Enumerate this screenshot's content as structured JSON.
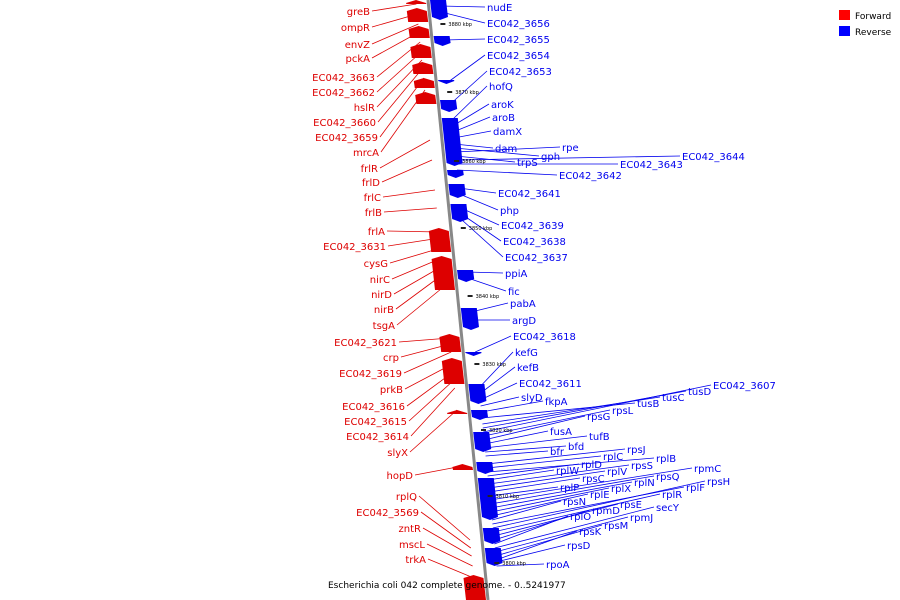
{
  "caption": "Escherichia coli 042 complete genome. - 0..5241977",
  "legend": [
    {
      "label": "Forward",
      "color": "#ff0000"
    },
    {
      "label": "Reverse",
      "color": "#0000ff"
    }
  ],
  "colors": {
    "forward": "#dd0000",
    "reverse": "#0000ee",
    "backbone": "#888888"
  },
  "ticks": [
    "3880 kbp",
    "3870 kbp",
    "3860 kbp",
    "3850 kbp",
    "3840 kbp",
    "3830 kbp",
    "3820 kbp",
    "3810 kbp",
    "3800 kbp"
  ],
  "forward_genes": [
    "greB",
    "ompR",
    "envZ",
    "pckA",
    "EC042_3663",
    "EC042_3662",
    "hslR",
    "EC042_3660",
    "EC042_3659",
    "mrcA",
    "frlR",
    "frlD",
    "frlC",
    "frlB",
    "frlA",
    "EC042_3631",
    "cysG",
    "nirC",
    "nirD",
    "nirB",
    "tsgA",
    "EC042_3621",
    "crp",
    "EC042_3619",
    "prkB",
    "EC042_3616",
    "EC042_3615",
    "EC042_3614",
    "slyX",
    "hopD",
    "rplQ",
    "EC042_3569",
    "zntR",
    "mscL",
    "trkA"
  ],
  "reverse_genes": [
    "nudE",
    "EC042_3656",
    "EC042_3655",
    "EC042_3654",
    "EC042_3653",
    "hofQ",
    "aroK",
    "aroB",
    "damX",
    "dam",
    "gph",
    "rpe",
    "trpS",
    "EC042_3644",
    "EC042_3643",
    "EC042_3642",
    "EC042_3641",
    "php",
    "EC042_3639",
    "EC042_3638",
    "EC042_3637",
    "ppiA",
    "fic",
    "pabA",
    "argD",
    "EC042_3618",
    "kefG",
    "kefB",
    "EC042_3611",
    "slyD",
    "fkpA",
    "tusB",
    "tusC",
    "tusD",
    "EC042_3607",
    "rpsL",
    "rpsG",
    "fusA",
    "tufB",
    "bfd",
    "bfr",
    "rpsJ",
    "rplC",
    "rplB",
    "rplD",
    "rplW",
    "rpsS",
    "rplV",
    "rpsC",
    "rplP",
    "rpmC",
    "rpsQ",
    "rplN",
    "rplX",
    "rplE",
    "rpsN",
    "rplF",
    "rpsH",
    "rplR",
    "rpsE",
    "rpmD",
    "rplO",
    "secY",
    "rpmJ",
    "rpsM",
    "rpsK",
    "rpsD",
    "rpoA"
  ]
}
